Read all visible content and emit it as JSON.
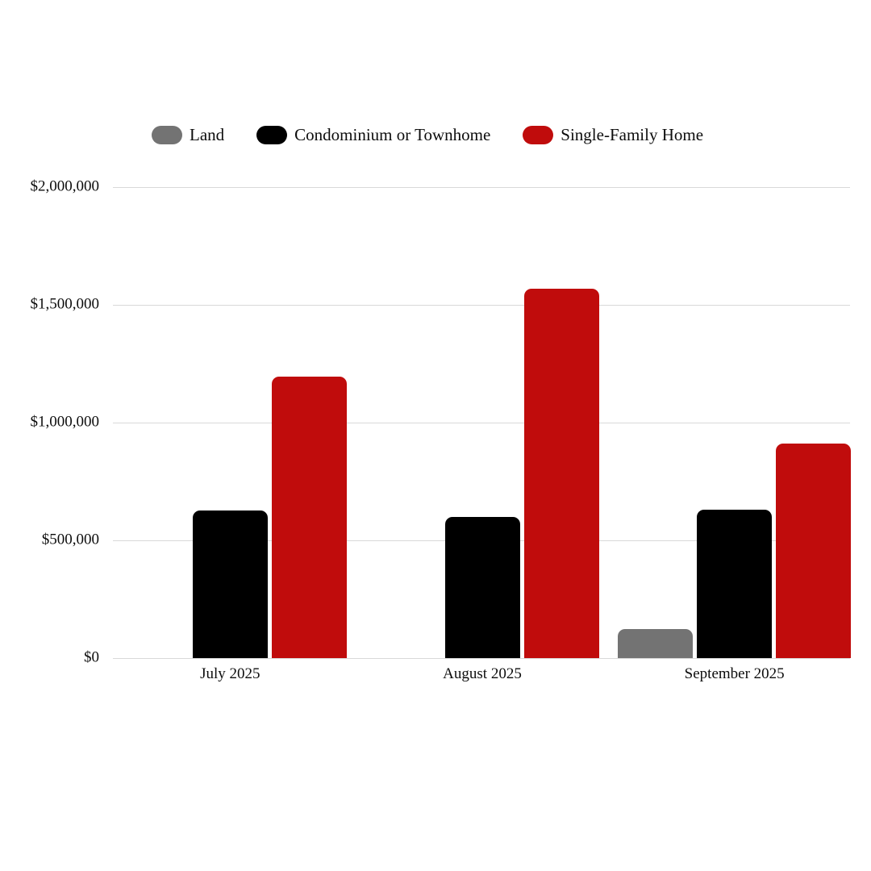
{
  "page": {
    "background_color": "#ffffff",
    "text_color": "#0d0d0d",
    "gridline_color": "#d9d9d9"
  },
  "legend": {
    "position": "top",
    "items": [
      {
        "label": "Land",
        "color": "#737373"
      },
      {
        "label": "Condominium or Townhome",
        "color": "#000000"
      },
      {
        "label": "Single-Family Home",
        "color": "#c00c0c"
      }
    ]
  },
  "chart_data": {
    "type": "bar",
    "categories": [
      "July 2025",
      "August 2025",
      "September 2025"
    ],
    "series": [
      {
        "name": "Land",
        "color": "#737373",
        "values": [
          null,
          null,
          123000
        ]
      },
      {
        "name": "Condominium or Townhome",
        "color": "#000000",
        "values": [
          627000,
          599000,
          630000
        ]
      },
      {
        "name": "Single-Family Home",
        "color": "#c00c0c",
        "values": [
          1195000,
          1568000,
          911000
        ]
      }
    ],
    "ylim": [
      0,
      2000000
    ],
    "yticks": [
      {
        "value": 0,
        "label": "$0"
      },
      {
        "value": 500000,
        "label": "$500,000"
      },
      {
        "value": 1000000,
        "label": "$1,000,000"
      },
      {
        "value": 1500000,
        "label": "$1,500,000"
      },
      {
        "value": 2000000,
        "label": "$2,000,000"
      }
    ],
    "grid": true,
    "legend_position": "top",
    "currency_format": "USD"
  }
}
